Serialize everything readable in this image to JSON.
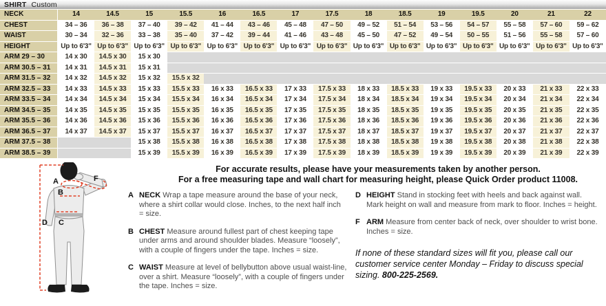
{
  "header": {
    "title": "SHIRT",
    "subtitle": "Custom"
  },
  "colors": {
    "tan": "#d9d0a7",
    "cream": "#f7f1d8",
    "empty_gray": "#d9d9d9",
    "accent_red": "#e04127"
  },
  "size_table": {
    "corner_label": "NECK",
    "neck_sizes": [
      "14",
      "14.5",
      "15",
      "15.5",
      "16",
      "16.5",
      "17",
      "17.5",
      "18",
      "18.5",
      "19",
      "19.5",
      "20",
      "21",
      "22"
    ],
    "rows": [
      {
        "label": "CHEST",
        "cells": [
          "34 – 36",
          "36 – 38",
          "37 – 40",
          "39 – 42",
          "41 – 44",
          "43 – 46",
          "45 – 48",
          "47 – 50",
          "49 – 52",
          "51 – 54",
          "53 – 56",
          "54 – 57",
          "55 – 58",
          "57 – 60",
          "59 – 62"
        ]
      },
      {
        "label": "WAIST",
        "cells": [
          "30 – 34",
          "32 – 36",
          "33 – 38",
          "35 – 40",
          "37 – 42",
          "39 – 44",
          "41 – 46",
          "43 – 48",
          "45 – 50",
          "47 – 52",
          "49 – 54",
          "50 – 55",
          "51 – 56",
          "55 – 58",
          "57 – 60"
        ]
      },
      {
        "label": "HEIGHT",
        "cells": [
          "Up to 6'3\"",
          "Up to 6'3\"",
          "Up to 6'3\"",
          "Up to 6'3\"",
          "Up to 6'3\"",
          "Up to 6'3\"",
          "Up to 6'3\"",
          "Up to 6'3\"",
          "Up to 6'3\"",
          "Up to 6'3\"",
          "Up to 6'3\"",
          "Up to 6'3\"",
          "Up to 6'3\"",
          "Up to 6'3\"",
          "Up to 6'3\""
        ]
      },
      {
        "label": "ARM 29 – 30",
        "cells": [
          "14 x 30",
          "14.5 x 30",
          "15 x 30",
          "",
          "",
          "",
          "",
          "",
          "",
          "",
          "",
          "",
          "",
          "",
          ""
        ]
      },
      {
        "label": "ARM 30.5 – 31",
        "cells": [
          "14 x 31",
          "14.5 x 31",
          "15 x 31",
          "",
          "",
          "",
          "",
          "",
          "",
          "",
          "",
          "",
          "",
          "",
          ""
        ]
      },
      {
        "label": "ARM 31.5 – 32",
        "cells": [
          "14 x 32",
          "14.5 x 32",
          "15 x 32",
          "15.5 x 32",
          "",
          "",
          "",
          "",
          "",
          "",
          "",
          "",
          "",
          "",
          ""
        ]
      },
      {
        "label": "ARM 32.5 – 33",
        "cells": [
          "14 x 33",
          "14.5 x 33",
          "15 x 33",
          "15.5 x 33",
          "16 x 33",
          "16.5 x 33",
          "17 x 33",
          "17.5 x 33",
          "18 x 33",
          "18.5 x 33",
          "19 x 33",
          "19.5 x 33",
          "20 x 33",
          "21 x 33",
          "22 x 33"
        ]
      },
      {
        "label": "ARM 33.5 – 34",
        "cells": [
          "14 x 34",
          "14.5 x 34",
          "15 x 34",
          "15.5 x 34",
          "16 x 34",
          "16.5 x 34",
          "17 x 34",
          "17.5 x 34",
          "18 x 34",
          "18.5 x 34",
          "19 x 34",
          "19.5 x 34",
          "20 x 34",
          "21 x 34",
          "22 x 34"
        ]
      },
      {
        "label": "ARM 34.5 – 35",
        "cells": [
          "14 x 35",
          "14.5 x 35",
          "15 x 35",
          "15.5 x 35",
          "16 x 35",
          "16.5 x 35",
          "17 x 35",
          "17.5 x 35",
          "18 x 35",
          "18.5 x 35",
          "19 x 35",
          "19.5 x 35",
          "20 x 35",
          "21 x 35",
          "22 x 35"
        ]
      },
      {
        "label": "ARM 35.5 – 36",
        "cells": [
          "14 x 36",
          "14.5 x 36",
          "15 x 36",
          "15.5 x 36",
          "16 x 36",
          "16.5 x 36",
          "17 x 36",
          "17.5 x 36",
          "18 x 36",
          "18.5 x 36",
          "19 x 36",
          "19.5 x 36",
          "20 x 36",
          "21 x 36",
          "22 x 36"
        ]
      },
      {
        "label": "ARM 36.5 – 37",
        "cells": [
          "14 x 37",
          "14.5 x 37",
          "15 x 37",
          "15.5 x 37",
          "16 x 37",
          "16.5 x 37",
          "17 x 37",
          "17.5 x 37",
          "18 x 37",
          "18.5 x 37",
          "19 x 37",
          "19.5 x 37",
          "20 x 37",
          "21 x 37",
          "22 x 37"
        ]
      },
      {
        "label": "ARM 37.5 – 38",
        "cells": [
          "",
          "",
          "15 x 38",
          "15.5 x 38",
          "16 x 38",
          "16.5 x 38",
          "17 x 38",
          "17.5 x 38",
          "18 x 38",
          "18.5 x 38",
          "19 x 38",
          "19.5 x 38",
          "20 x 38",
          "21 x 38",
          "22 x 38"
        ]
      },
      {
        "label": "ARM 38.5 – 39",
        "cells": [
          "",
          "",
          "15 x 39",
          "15.5 x 39",
          "16 x 39",
          "16.5 x 39",
          "17 x 39",
          "17.5 x 39",
          "18 x 39",
          "18.5 x 39",
          "19 x 39",
          "19.5 x 39",
          "20 x 39",
          "21 x 39",
          "22 x 39"
        ]
      }
    ]
  },
  "intro": {
    "line1": "For accurate results, please have your measurements taken by another person.",
    "line2": "For a free measuring tape and wall chart for measuring height, please Quick Order product 11008."
  },
  "measure": {
    "left": [
      {
        "key": "A",
        "term": "NECK",
        "text": "Wrap a tape measure around the base of your neck, where a shirt collar would close. Inches, to the next half inch = size."
      },
      {
        "key": "B",
        "term": "CHEST",
        "text": "Measure around fullest part of chest keeping tape under arms and around shoulder blades. Measure “loosely”, with a couple of fingers under the tape. Inches = size."
      },
      {
        "key": "C",
        "term": "WAIST",
        "text": "Measure at level of bellybutton above usual waist-line, over a shirt. Measure “loosely”, with a couple of fingers under the tape. Inches = size."
      }
    ],
    "right": [
      {
        "key": "D",
        "term": "HEIGHT",
        "text": "Stand in stocking feet with heels and back against wall. Mark height on wall and measure from mark to floor. Inches = height."
      },
      {
        "key": "F",
        "term": "ARM",
        "text": "Measure from center back of neck, over shoulder to wrist bone. Inches = size."
      }
    ]
  },
  "special_note": {
    "text": "If none of these standard sizes will fit you, please call our customer service center Monday – Friday to discuss special sizing.",
    "phone": "800-225-2569."
  },
  "figure": {
    "labels": {
      "a": "A",
      "b": "B",
      "c": "C",
      "d": "D",
      "f": "F"
    }
  }
}
